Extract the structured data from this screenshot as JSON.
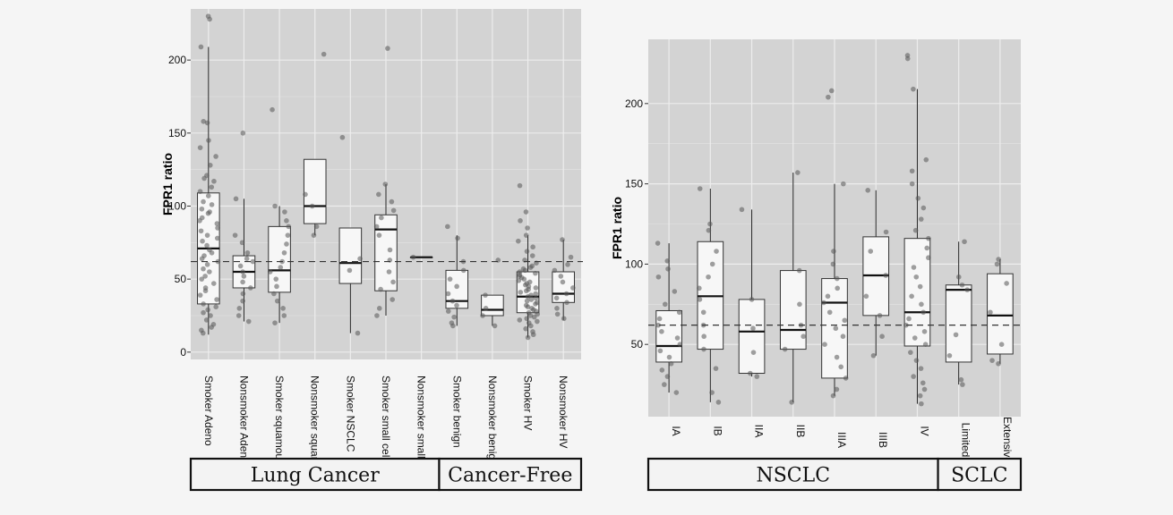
{
  "colors": {
    "panel_bg": "#d3d3d3",
    "grid": "#ededed",
    "box_fill": "#f7f7f7",
    "point": "#555555"
  },
  "chart_data": [
    {
      "type": "box",
      "ylabel": "FPR1 ratio",
      "ylim": [
        -5,
        235
      ],
      "yticks": [
        0,
        50,
        100,
        150,
        200
      ],
      "reference_line": 62,
      "categories": [
        "Smoker Adeno",
        "Nonsmoker Adeno",
        "Smoker squamous",
        "Nonsmoker squamous",
        "Smoker NSCLC",
        "Smoker small cell",
        "Nonsmoker small cell",
        "Smoker benign",
        "Nonsmoker benign",
        "Smoker HV",
        "Nonsmoker HV"
      ],
      "boxes": [
        {
          "q1": 33,
          "median": 71,
          "q3": 109,
          "min": 12,
          "max": 209
        },
        {
          "q1": 44,
          "median": 55,
          "q3": 66,
          "min": 21,
          "max": 105
        },
        {
          "q1": 41,
          "median": 56,
          "q3": 86,
          "min": 20,
          "max": 100
        },
        {
          "q1": 88,
          "median": 100,
          "q3": 132,
          "min": 80,
          "max": 132
        },
        {
          "q1": 47,
          "median": 61,
          "q3": 85,
          "min": 13,
          "max": 85
        },
        {
          "q1": 42,
          "median": 84,
          "q3": 94,
          "min": 25,
          "max": 115
        },
        {
          "q1": 65,
          "median": 65,
          "q3": 65,
          "min": 65,
          "max": 65
        },
        {
          "q1": 30,
          "median": 35,
          "q3": 56,
          "min": 18,
          "max": 80
        },
        {
          "q1": 25,
          "median": 29,
          "q3": 39,
          "min": 18,
          "max": 39
        },
        {
          "q1": 27,
          "median": 38,
          "q3": 55,
          "min": 10,
          "max": 80
        },
        {
          "q1": 34,
          "median": 40,
          "q3": 55,
          "min": 22,
          "max": 77
        }
      ],
      "points": [
        [
          230,
          228,
          209,
          158,
          157,
          145,
          140,
          134,
          128,
          121,
          119,
          117,
          113,
          110,
          107,
          103,
          101,
          98,
          96,
          95,
          92,
          90,
          88,
          85,
          83,
          80,
          78,
          76,
          73,
          70,
          68,
          66,
          64,
          62,
          60,
          57,
          55,
          52,
          50,
          47,
          44,
          42,
          39,
          36,
          33,
          31,
          29,
          27,
          25,
          22,
          19,
          17,
          15,
          13
        ],
        [
          150,
          105,
          80,
          75,
          68,
          64,
          62,
          59,
          55,
          52,
          48,
          44,
          40,
          35,
          30,
          25,
          21
        ],
        [
          166,
          100,
          96,
          90,
          86,
          80,
          74,
          68,
          62,
          58,
          55,
          50,
          45,
          40,
          35,
          30,
          25,
          20
        ],
        [
          204,
          108,
          100,
          86,
          80
        ],
        [
          147,
          64,
          56,
          13
        ],
        [
          208,
          115,
          108,
          103,
          97,
          92,
          86,
          80,
          70,
          63,
          55,
          48,
          43,
          36,
          30,
          25
        ],
        [
          65
        ],
        [
          86,
          78,
          62,
          56,
          50,
          45,
          40,
          35,
          32,
          28,
          24,
          20,
          18
        ],
        [
          63,
          39,
          30,
          25,
          18
        ],
        [
          114,
          96,
          90,
          85,
          80,
          76,
          72,
          69,
          66,
          63,
          61,
          59,
          58,
          57,
          56,
          55,
          54,
          53,
          52,
          51,
          50,
          49,
          48,
          47,
          46,
          45,
          44,
          43,
          42,
          41,
          40,
          39,
          38,
          37,
          36,
          35,
          34,
          33,
          32,
          31,
          30,
          29,
          28,
          27,
          26,
          25,
          24,
          23,
          22,
          21,
          20,
          18,
          16,
          14,
          12,
          10
        ],
        [
          77,
          65,
          60,
          56,
          52,
          48,
          44,
          40,
          37,
          34,
          30,
          26,
          23
        ]
      ],
      "groups": [
        {
          "label": "Lung Cancer",
          "span": [
            0,
            6
          ]
        },
        {
          "label": "Cancer-Free",
          "span": [
            7,
            10
          ]
        }
      ]
    },
    {
      "type": "box",
      "ylabel": "FPR1 ratio",
      "ylim": [
        5,
        240
      ],
      "yticks": [
        50,
        100,
        150,
        200
      ],
      "reference_line": 62,
      "categories": [
        "IA",
        "IB",
        "IIA",
        "IIB",
        "IIIA",
        "IIIB",
        "IV",
        "Limited",
        "Extensive"
      ],
      "boxes": [
        {
          "q1": 39,
          "median": 49,
          "q3": 71,
          "min": 20,
          "max": 113
        },
        {
          "q1": 47,
          "median": 80,
          "q3": 114,
          "min": 14,
          "max": 147
        },
        {
          "q1": 32,
          "median": 58,
          "q3": 78,
          "min": 30,
          "max": 134
        },
        {
          "q1": 47,
          "median": 59,
          "q3": 96,
          "min": 14,
          "max": 157
        },
        {
          "q1": 29,
          "median": 76,
          "q3": 91,
          "min": 18,
          "max": 150
        },
        {
          "q1": 68,
          "median": 93,
          "q3": 117,
          "min": 43,
          "max": 146
        },
        {
          "q1": 49,
          "median": 70,
          "q3": 116,
          "min": 13,
          "max": 209
        },
        {
          "q1": 39,
          "median": 84,
          "q3": 87,
          "min": 25,
          "max": 114
        },
        {
          "q1": 44,
          "median": 68,
          "q3": 94,
          "min": 38,
          "max": 103
        }
      ],
      "points": [
        [
          113,
          102,
          97,
          92,
          83,
          75,
          70,
          66,
          62,
          58,
          54,
          50,
          46,
          42,
          38,
          34,
          30,
          25,
          20
        ],
        [
          147,
          125,
          121,
          108,
          100,
          92,
          85,
          78,
          70,
          62,
          55,
          47,
          35,
          20,
          14
        ],
        [
          134,
          78,
          60,
          45,
          32,
          30
        ],
        [
          157,
          96,
          75,
          62,
          55,
          47,
          14
        ],
        [
          208,
          204,
          150,
          108,
          100,
          91,
          85,
          80,
          76,
          70,
          65,
          60,
          55,
          50,
          42,
          36,
          29,
          22,
          18
        ],
        [
          146,
          120,
          108,
          93,
          80,
          68,
          55,
          43
        ],
        [
          230,
          228,
          209,
          165,
          158,
          150,
          141,
          135,
          128,
          121,
          116,
          110,
          104,
          98,
          92,
          86,
          80,
          75,
          70,
          66,
          62,
          58,
          54,
          50,
          45,
          40,
          35,
          30,
          26,
          22,
          18,
          13
        ],
        [
          114,
          92,
          87,
          84,
          56,
          43,
          28,
          25
        ],
        [
          103,
          100,
          88,
          70,
          50,
          40,
          38
        ]
      ],
      "groups": [
        {
          "label": "NSCLC",
          "span": [
            0,
            6
          ]
        },
        {
          "label": "SCLC",
          "span": [
            7,
            8
          ]
        }
      ]
    }
  ]
}
